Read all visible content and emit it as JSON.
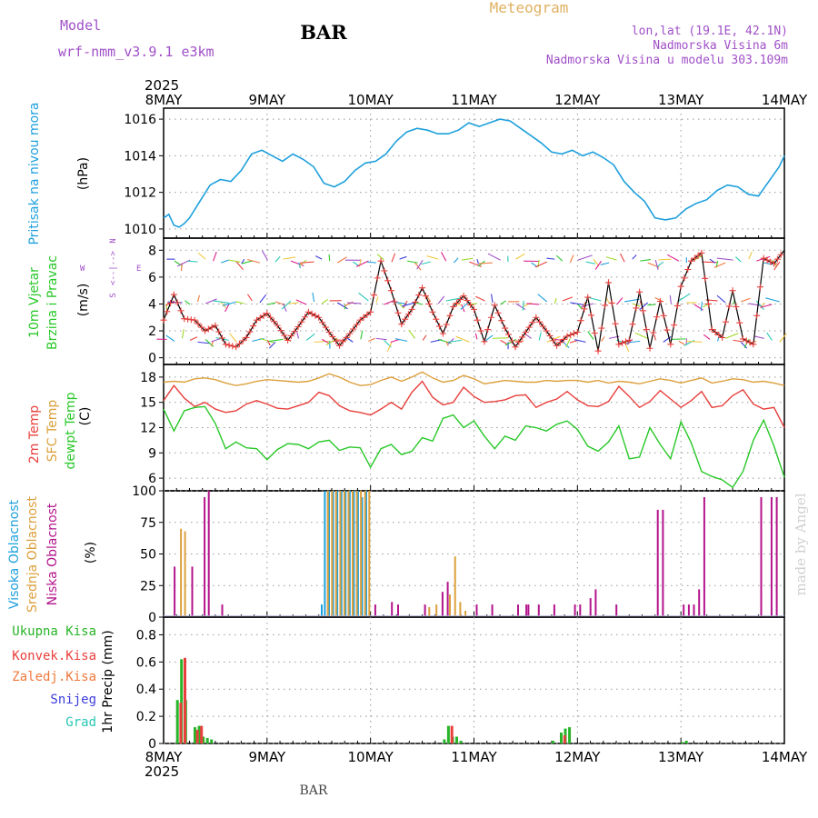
{
  "header": {
    "title": "BAR",
    "chart_kind": "Meteogram",
    "model_label": "Model",
    "model_name": "wrf-nmm_v3.9.1 e3km",
    "location": "lon,lat (19.1E, 42.1N)",
    "elevation": "Nadmorska Visina 6m",
    "model_elevation": "Nadmorska Visina u modelu 303.109m",
    "footer_station": "BAR",
    "watermark": "made by Angel"
  },
  "colors": {
    "pressure": "#1ea0dc",
    "temp2m": "#e8403c",
    "sfc": "#dca03c",
    "dewpt": "#28c828",
    "wind_speed": "#000000",
    "wind_marker": "#e8403c",
    "high_cloud": "#1ea0dc",
    "mid_cloud": "#dca03c",
    "low_cloud": "#b4148c",
    "total_precip": "#28b428",
    "conv_precip": "#e8403c",
    "frozen_precip": "#f0783c",
    "snow": "#3c3cdc",
    "hail": "#28c8b4",
    "header_purple": "#a050c8",
    "header_orange": "#e0b060"
  },
  "chart_data": [
    {
      "id": "pressure",
      "type": "line",
      "title": "Pritisak na nivou mora",
      "ylabel": "(hPa)",
      "ylim": [
        1009.5,
        1016.6
      ],
      "yticks": [
        1010,
        1012,
        1014,
        1016
      ],
      "x_unit": "days since 2025-05-08 00Z",
      "xlim": [
        0,
        6
      ],
      "x": [
        0.0,
        0.05,
        0.1,
        0.15,
        0.2,
        0.25,
        0.35,
        0.45,
        0.55,
        0.65,
        0.75,
        0.85,
        0.95,
        1.05,
        1.15,
        1.25,
        1.35,
        1.45,
        1.55,
        1.65,
        1.75,
        1.85,
        1.95,
        2.05,
        2.15,
        2.25,
        2.35,
        2.45,
        2.55,
        2.65,
        2.75,
        2.85,
        2.95,
        3.05,
        3.15,
        3.25,
        3.35,
        3.45,
        3.55,
        3.65,
        3.75,
        3.85,
        3.95,
        4.05,
        4.15,
        4.25,
        4.35,
        4.45,
        4.55,
        4.65,
        4.75,
        4.85,
        4.95,
        5.05,
        5.15,
        5.25,
        5.35,
        5.45,
        5.55,
        5.65,
        5.75,
        5.85,
        5.95,
        6.0
      ],
      "values": [
        1010.6,
        1010.8,
        1010.2,
        1010.1,
        1010.3,
        1010.6,
        1011.5,
        1012.4,
        1012.7,
        1012.6,
        1013.2,
        1014.1,
        1014.3,
        1014.0,
        1013.7,
        1014.1,
        1013.8,
        1013.4,
        1012.5,
        1012.3,
        1012.6,
        1013.2,
        1013.6,
        1013.7,
        1014.1,
        1014.8,
        1015.3,
        1015.5,
        1015.4,
        1015.2,
        1015.2,
        1015.4,
        1015.8,
        1015.6,
        1015.8,
        1016.0,
        1015.9,
        1015.5,
        1015.1,
        1014.7,
        1014.2,
        1014.1,
        1014.3,
        1014.0,
        1014.2,
        1013.9,
        1013.5,
        1012.6,
        1012.0,
        1011.5,
        1010.6,
        1010.5,
        1010.6,
        1011.1,
        1011.4,
        1011.6,
        1012.1,
        1012.4,
        1012.3,
        1011.9,
        1011.8,
        1012.6,
        1013.4,
        1014.0
      ]
    },
    {
      "id": "wind",
      "type": "line",
      "title_lines": [
        "10m Vjetar",
        "Brzina i Pravac"
      ],
      "ylabel": "(m/s)",
      "compass": {
        "n": "N",
        "s": "S",
        "e": "E",
        "w": "W"
      },
      "ylim": [
        -0.5,
        8.9
      ],
      "yticks": [
        0,
        2,
        4,
        6,
        8
      ],
      "xlim": [
        0,
        6
      ],
      "x": [
        0.0,
        0.1,
        0.2,
        0.3,
        0.4,
        0.5,
        0.6,
        0.7,
        0.8,
        0.9,
        1.0,
        1.1,
        1.2,
        1.3,
        1.4,
        1.5,
        1.6,
        1.7,
        1.8,
        1.9,
        2.0,
        2.1,
        2.2,
        2.3,
        2.4,
        2.5,
        2.6,
        2.7,
        2.8,
        2.9,
        3.0,
        3.1,
        3.2,
        3.3,
        3.4,
        3.5,
        3.6,
        3.7,
        3.8,
        3.9,
        4.0,
        4.1,
        4.2,
        4.3,
        4.4,
        4.5,
        4.6,
        4.7,
        4.8,
        4.9,
        5.0,
        5.1,
        5.2,
        5.3,
        5.4,
        5.5,
        5.6,
        5.7,
        5.8,
        5.9,
        6.0
      ],
      "values": [
        2.8,
        4.7,
        2.9,
        2.8,
        2.0,
        2.4,
        1.0,
        0.8,
        1.5,
        2.8,
        3.3,
        2.4,
        1.3,
        2.3,
        3.4,
        3.0,
        1.9,
        0.9,
        1.8,
        2.8,
        3.4,
        7.2,
        5.0,
        2.5,
        3.6,
        5.2,
        3.4,
        1.8,
        3.8,
        4.6,
        3.6,
        1.2,
        3.9,
        2.2,
        0.8,
        1.9,
        3.0,
        2.0,
        0.9,
        1.6,
        1.9,
        4.5,
        0.5,
        5.6,
        1.0,
        1.3,
        4.9,
        0.7,
        4.2,
        1.0,
        5.3,
        7.2,
        7.8,
        2.1,
        1.5,
        5.0,
        1.4,
        1.0,
        7.4,
        7.0,
        8.0
      ],
      "markers": "crosses on speed line"
    },
    {
      "id": "temperature",
      "type": "line",
      "title_lines": [
        "2m Temp",
        "SFC Temp",
        "dewpt Temp"
      ],
      "ylabel": "(C)",
      "ylim": [
        4.5,
        19.5
      ],
      "yticks": [
        6,
        9,
        12,
        15,
        18
      ],
      "xlim": [
        0,
        6
      ],
      "x": [
        0.0,
        0.1,
        0.2,
        0.3,
        0.4,
        0.5,
        0.6,
        0.7,
        0.8,
        0.9,
        1.0,
        1.1,
        1.2,
        1.3,
        1.4,
        1.5,
        1.6,
        1.7,
        1.8,
        1.9,
        2.0,
        2.1,
        2.2,
        2.3,
        2.4,
        2.5,
        2.6,
        2.7,
        2.8,
        2.9,
        3.0,
        3.1,
        3.2,
        3.3,
        3.4,
        3.5,
        3.6,
        3.7,
        3.8,
        3.9,
        4.0,
        4.1,
        4.2,
        4.3,
        4.4,
        4.5,
        4.6,
        4.7,
        4.8,
        4.9,
        5.0,
        5.1,
        5.2,
        5.3,
        5.4,
        5.5,
        5.6,
        5.7,
        5.8,
        5.9,
        6.0
      ],
      "series": [
        {
          "name": "2m Temp",
          "color_key": "temp2m",
          "values": [
            15.2,
            17.0,
            15.5,
            14.5,
            15.0,
            14.2,
            13.8,
            14.0,
            14.8,
            15.2,
            14.8,
            14.3,
            14.2,
            14.6,
            15.0,
            16.2,
            15.8,
            14.6,
            14.0,
            13.8,
            13.5,
            14.2,
            15.0,
            14.2,
            16.2,
            17.5,
            15.6,
            14.7,
            15.0,
            16.8,
            15.7,
            15.0,
            15.1,
            15.3,
            15.8,
            15.9,
            14.4,
            15.0,
            15.4,
            16.3,
            15.3,
            14.6,
            14.5,
            15.1,
            16.9,
            15.7,
            14.4,
            15.1,
            16.4,
            15.4,
            14.4,
            15.2,
            16.3,
            14.4,
            14.6,
            15.8,
            16.5,
            14.8,
            14.2,
            14.4,
            12.0
          ]
        },
        {
          "name": "SFC Temp",
          "color_key": "sfc",
          "values": [
            17.4,
            17.5,
            17.4,
            17.8,
            17.9,
            17.7,
            17.3,
            17.0,
            17.2,
            17.5,
            17.7,
            17.6,
            17.5,
            17.4,
            17.5,
            17.9,
            18.4,
            18.0,
            17.4,
            17.0,
            17.1,
            17.6,
            18.0,
            17.5,
            18.0,
            18.6,
            17.9,
            17.4,
            17.6,
            18.2,
            17.8,
            17.2,
            17.4,
            17.6,
            17.5,
            17.4,
            17.4,
            17.6,
            17.5,
            17.6,
            17.6,
            17.4,
            17.6,
            17.3,
            17.5,
            17.4,
            17.2,
            17.5,
            17.8,
            17.6,
            17.3,
            17.6,
            17.9,
            17.3,
            17.5,
            17.8,
            17.7,
            17.4,
            17.5,
            17.3,
            17.0
          ]
        },
        {
          "name": "dewpt Temp",
          "color_key": "dewpt",
          "values": [
            14.2,
            11.6,
            14.0,
            14.4,
            14.5,
            12.5,
            9.5,
            10.3,
            9.6,
            9.5,
            8.2,
            9.4,
            10.1,
            10.0,
            9.5,
            10.3,
            10.5,
            9.3,
            9.7,
            9.6,
            7.3,
            9.5,
            10.0,
            8.8,
            9.2,
            10.8,
            10.4,
            13.1,
            13.5,
            12.0,
            12.8,
            11.0,
            9.5,
            11.0,
            10.5,
            12.2,
            12.0,
            11.6,
            12.4,
            12.8,
            11.8,
            9.8,
            9.2,
            10.3,
            12.2,
            8.3,
            8.5,
            12.0,
            10.0,
            8.3,
            12.7,
            10.2,
            6.8,
            6.2,
            5.8,
            4.9,
            6.8,
            10.5,
            12.9,
            9.8,
            6.1
          ]
        }
      ]
    },
    {
      "id": "clouds",
      "type": "bar",
      "title_lines": [
        "Visoka Oblacnost",
        "Srednja Oblacnost",
        "Niska Oblacnost"
      ],
      "ylabel": "(%)",
      "ylim": [
        0,
        100
      ],
      "yticks": [
        0,
        25,
        50,
        75,
        100
      ],
      "xlim": [
        0,
        6
      ],
      "series": [
        {
          "name": "Visoka Oblacnost",
          "color_key": "high_cloud",
          "bars": [
            [
              1.52,
              10
            ],
            [
              1.55,
              100
            ],
            [
              1.59,
              100
            ],
            [
              1.63,
              100
            ],
            [
              1.67,
              100
            ],
            [
              1.71,
              100
            ],
            [
              1.75,
              100
            ],
            [
              1.79,
              100
            ],
            [
              1.83,
              100
            ],
            [
              1.87,
              100
            ],
            [
              1.91,
              95
            ],
            [
              1.95,
              100
            ]
          ]
        },
        {
          "name": "Srednja Oblacnost",
          "color_key": "mid_cloud",
          "bars": [
            [
              0.15,
              70
            ],
            [
              0.19,
              68
            ],
            [
              1.57,
              100
            ],
            [
              1.61,
              100
            ],
            [
              1.65,
              100
            ],
            [
              1.69,
              100
            ],
            [
              1.73,
              100
            ],
            [
              1.77,
              100
            ],
            [
              1.81,
              100
            ],
            [
              1.85,
              100
            ],
            [
              1.89,
              100
            ],
            [
              1.93,
              100
            ],
            [
              1.97,
              100
            ],
            [
              2.55,
              8
            ],
            [
              2.62,
              10
            ],
            [
              2.75,
              18
            ],
            [
              2.8,
              48
            ],
            [
              2.85,
              12
            ],
            [
              2.9,
              5
            ]
          ]
        },
        {
          "name": "Niska Oblacnost",
          "color_key": "low_cloud",
          "bars": [
            [
              0.08,
              40
            ],
            [
              0.25,
              40
            ],
            [
              0.37,
              95
            ],
            [
              0.41,
              100
            ],
            [
              0.54,
              10
            ],
            [
              2.02,
              10
            ],
            [
              2.18,
              12
            ],
            [
              2.24,
              10
            ],
            [
              2.5,
              10
            ],
            [
              2.67,
              20
            ],
            [
              2.72,
              28
            ],
            [
              3.0,
              10
            ],
            [
              3.15,
              10
            ],
            [
              3.4,
              10
            ],
            [
              3.48,
              10
            ],
            [
              3.5,
              10
            ],
            [
              3.6,
              10
            ],
            [
              3.75,
              10
            ],
            [
              3.95,
              10
            ],
            [
              4.0,
              10
            ],
            [
              4.1,
              15
            ],
            [
              4.15,
              22
            ],
            [
              4.35,
              10
            ],
            [
              4.75,
              85
            ],
            [
              4.8,
              85
            ],
            [
              5.0,
              10
            ],
            [
              5.05,
              10
            ],
            [
              5.1,
              10
            ],
            [
              5.15,
              22
            ],
            [
              5.2,
              95
            ],
            [
              5.75,
              95
            ],
            [
              5.85,
              95
            ],
            [
              5.9,
              95
            ]
          ]
        }
      ]
    },
    {
      "id": "precip",
      "type": "bar",
      "legend": [
        "Ukupna Kisa",
        "Konvek.Kisa",
        "Zaledj.Kisa",
        "Snijeg",
        "Grad"
      ],
      "ylabel": "1hr Precip (mm)",
      "ylim": [
        0,
        0.93
      ],
      "yticks": [
        0,
        0.2,
        0.4,
        0.6,
        0.8
      ],
      "xlim": [
        0,
        6
      ],
      "series": [
        {
          "name": "Ukupna Kisa",
          "color_key": "total_precip",
          "bars": [
            [
              0.12,
              0.32
            ],
            [
              0.16,
              0.62
            ],
            [
              0.2,
              0.32
            ],
            [
              0.29,
              0.12
            ],
            [
              0.33,
              0.13
            ],
            [
              0.37,
              0.05
            ],
            [
              0.41,
              0.04
            ],
            [
              0.45,
              0.03
            ],
            [
              2.7,
              0.03
            ],
            [
              2.74,
              0.13
            ],
            [
              2.78,
              0.05
            ],
            [
              2.82,
              0.05
            ],
            [
              2.86,
              0.02
            ],
            [
              3.75,
              0.02
            ],
            [
              3.83,
              0.08
            ],
            [
              3.87,
              0.11
            ],
            [
              3.91,
              0.12
            ],
            [
              5.0,
              0.01
            ],
            [
              5.04,
              0.02
            ]
          ]
        },
        {
          "name": "Konvek.Kisa",
          "color_key": "conv_precip",
          "bars": [
            [
              0.14,
              0.3
            ],
            [
              0.18,
              0.63
            ],
            [
              0.3,
              0.1
            ],
            [
              0.34,
              0.13
            ],
            [
              2.76,
              0.13
            ],
            [
              3.85,
              0.06
            ]
          ]
        }
      ]
    }
  ],
  "x_axis": {
    "year": "2025",
    "ticks": [
      "8MAY",
      "9MAY",
      "10MAY",
      "11MAY",
      "12MAY",
      "13MAY",
      "14MAY"
    ]
  }
}
